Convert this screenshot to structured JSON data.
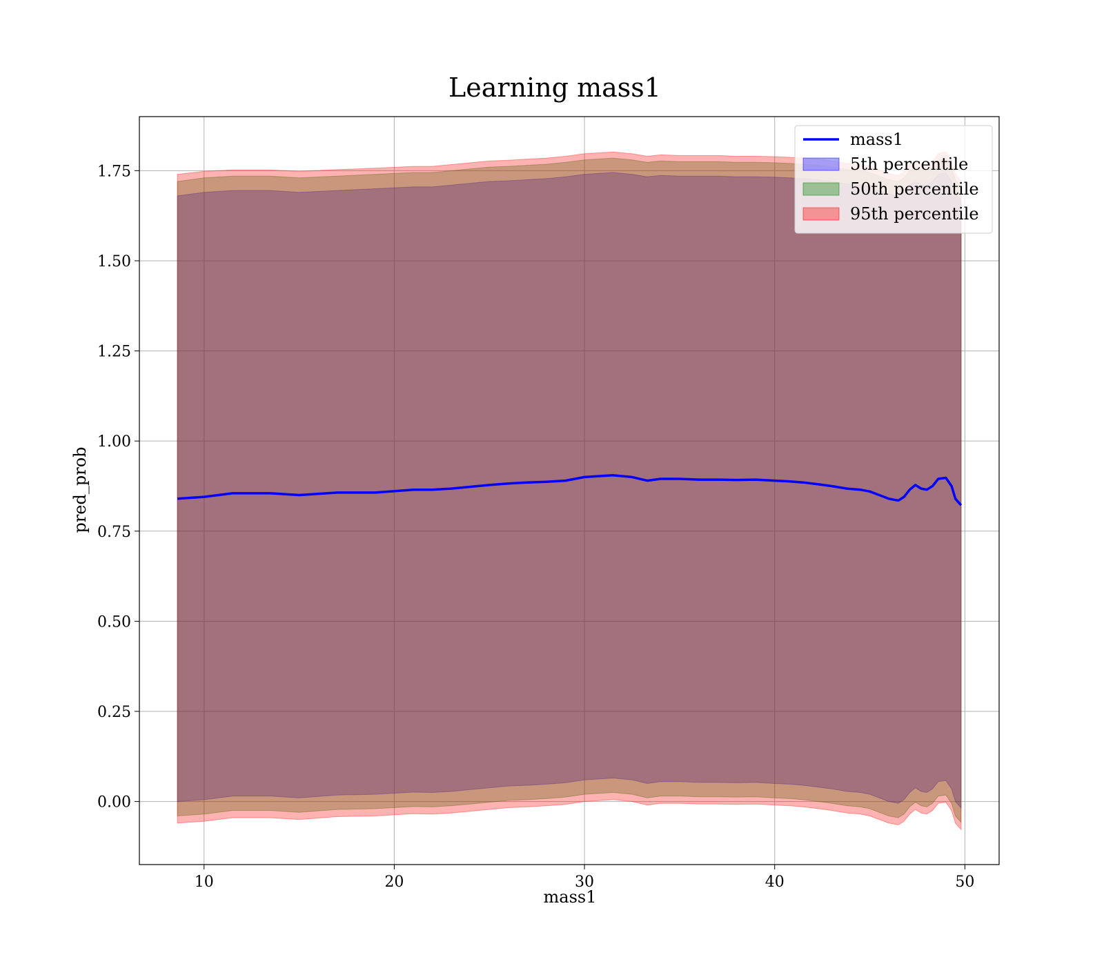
{
  "chart_data": {
    "type": "area",
    "title": "Learning mass1",
    "xlabel": "mass1",
    "ylabel": "pred_prob",
    "xlim": [
      6.6,
      51.8
    ],
    "ylim": [
      -0.175,
      1.9
    ],
    "xticks": [
      10,
      20,
      30,
      40,
      50
    ],
    "xtick_labels": [
      "10",
      "20",
      "30",
      "40",
      "50"
    ],
    "yticks": [
      0.0,
      0.25,
      0.5,
      0.75,
      1.0,
      1.25,
      1.5,
      1.75
    ],
    "ytick_labels": [
      "0.00",
      "0.25",
      "0.50",
      "0.75",
      "1.00",
      "1.25",
      "1.50",
      "1.75"
    ],
    "grid": true,
    "legend_position": "top-right",
    "legend": [
      "mass1",
      "5th percentile",
      "50th percentile",
      "95th percentile"
    ],
    "x": [
      8.6,
      10,
      11.5,
      13.5,
      15,
      17,
      19,
      21,
      22,
      23,
      24,
      25,
      26,
      27,
      28,
      29,
      30,
      31.5,
      32.5,
      33.3,
      34,
      35,
      36,
      37,
      38,
      39,
      40,
      40.8,
      41.5,
      42.3,
      43,
      43.8,
      44.5,
      45,
      45.5,
      46,
      46.5,
      46.8,
      47.1,
      47.4,
      47.7,
      48,
      48.3,
      48.6,
      49.0,
      49.3,
      49.5,
      49.8
    ],
    "series": [
      {
        "name": "mass1",
        "kind": "line",
        "color": "#0000ff",
        "values": [
          0.84,
          0.845,
          0.855,
          0.855,
          0.85,
          0.857,
          0.857,
          0.865,
          0.865,
          0.868,
          0.873,
          0.878,
          0.882,
          0.885,
          0.887,
          0.89,
          0.9,
          0.905,
          0.9,
          0.89,
          0.895,
          0.895,
          0.893,
          0.893,
          0.892,
          0.893,
          0.89,
          0.888,
          0.885,
          0.88,
          0.875,
          0.868,
          0.865,
          0.86,
          0.85,
          0.84,
          0.835,
          0.845,
          0.865,
          0.878,
          0.868,
          0.865,
          0.875,
          0.895,
          0.898,
          0.875,
          0.84,
          0.822
        ]
      },
      {
        "name": "5th percentile",
        "kind": "band",
        "color": "#0000ff",
        "upper": [
          1.68,
          1.69,
          1.695,
          1.695,
          1.69,
          1.695,
          1.7,
          1.705,
          1.705,
          1.71,
          1.715,
          1.72,
          1.722,
          1.725,
          1.728,
          1.733,
          1.74,
          1.745,
          1.74,
          1.733,
          1.737,
          1.735,
          1.735,
          1.735,
          1.733,
          1.733,
          1.732,
          1.73,
          1.728,
          1.725,
          1.72,
          1.713,
          1.71,
          1.705,
          1.695,
          1.685,
          1.68,
          1.69,
          1.71,
          1.72,
          1.712,
          1.71,
          1.72,
          1.74,
          1.745,
          1.72,
          1.685,
          1.665
        ],
        "lower": [
          0.0,
          0.005,
          0.015,
          0.015,
          0.01,
          0.018,
          0.02,
          0.026,
          0.025,
          0.028,
          0.033,
          0.038,
          0.043,
          0.045,
          0.048,
          0.052,
          0.06,
          0.065,
          0.06,
          0.05,
          0.055,
          0.055,
          0.053,
          0.053,
          0.052,
          0.053,
          0.05,
          0.048,
          0.045,
          0.04,
          0.035,
          0.028,
          0.025,
          0.02,
          0.01,
          0.0,
          -0.005,
          0.005,
          0.025,
          0.038,
          0.028,
          0.025,
          0.035,
          0.055,
          0.058,
          0.035,
          0.0,
          -0.018
        ]
      },
      {
        "name": "50th percentile",
        "kind": "band",
        "color": "#008000",
        "upper": [
          1.72,
          1.73,
          1.735,
          1.735,
          1.73,
          1.735,
          1.74,
          1.745,
          1.745,
          1.75,
          1.755,
          1.76,
          1.762,
          1.765,
          1.768,
          1.773,
          1.78,
          1.785,
          1.78,
          1.773,
          1.777,
          1.775,
          1.775,
          1.775,
          1.773,
          1.773,
          1.772,
          1.77,
          1.768,
          1.765,
          1.76,
          1.753,
          1.75,
          1.745,
          1.735,
          1.725,
          1.72,
          1.73,
          1.75,
          1.76,
          1.752,
          1.75,
          1.76,
          1.78,
          1.785,
          1.76,
          1.725,
          1.705
        ],
        "lower": [
          -0.04,
          -0.035,
          -0.025,
          -0.025,
          -0.03,
          -0.022,
          -0.02,
          -0.014,
          -0.015,
          -0.012,
          -0.007,
          -0.002,
          0.003,
          0.005,
          0.008,
          0.012,
          0.02,
          0.025,
          0.02,
          0.01,
          0.015,
          0.015,
          0.013,
          0.013,
          0.012,
          0.013,
          0.01,
          0.008,
          0.005,
          0.0,
          -0.005,
          -0.012,
          -0.015,
          -0.02,
          -0.03,
          -0.04,
          -0.045,
          -0.035,
          -0.015,
          -0.002,
          -0.012,
          -0.015,
          -0.005,
          0.015,
          0.018,
          -0.005,
          -0.04,
          -0.058
        ]
      },
      {
        "name": "95th percentile",
        "kind": "band",
        "color": "#ff0000",
        "upper": [
          1.74,
          1.748,
          1.752,
          1.752,
          1.748,
          1.753,
          1.757,
          1.762,
          1.762,
          1.767,
          1.772,
          1.777,
          1.779,
          1.782,
          1.785,
          1.79,
          1.797,
          1.802,
          1.797,
          1.79,
          1.794,
          1.792,
          1.792,
          1.792,
          1.79,
          1.79,
          1.789,
          1.787,
          1.785,
          1.782,
          1.777,
          1.77,
          1.767,
          1.762,
          1.752,
          1.742,
          1.737,
          1.747,
          1.767,
          1.777,
          1.769,
          1.767,
          1.777,
          1.797,
          1.802,
          1.777,
          1.742,
          1.722
        ],
        "lower": [
          -0.06,
          -0.055,
          -0.045,
          -0.045,
          -0.05,
          -0.042,
          -0.04,
          -0.034,
          -0.035,
          -0.032,
          -0.027,
          -0.022,
          -0.017,
          -0.015,
          -0.012,
          -0.008,
          0.0,
          0.005,
          0.0,
          -0.01,
          -0.005,
          -0.005,
          -0.007,
          -0.007,
          -0.008,
          -0.007,
          -0.01,
          -0.012,
          -0.015,
          -0.02,
          -0.025,
          -0.032,
          -0.035,
          -0.04,
          -0.05,
          -0.06,
          -0.065,
          -0.055,
          -0.035,
          -0.022,
          -0.032,
          -0.035,
          -0.025,
          -0.005,
          -0.002,
          -0.025,
          -0.06,
          -0.078
        ]
      }
    ]
  }
}
